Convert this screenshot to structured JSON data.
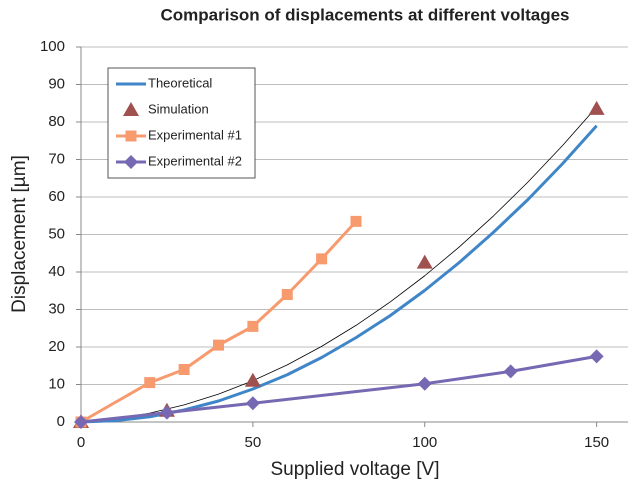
{
  "chart_data": {
    "type": "line",
    "title": "Comparison of displacements at different voltages",
    "x_label": "Supplied voltage [V]",
    "y_label": "Displacement [µm]",
    "xlim": [
      0,
      160
    ],
    "xticks": [
      0,
      50,
      100,
      150
    ],
    "ylim": [
      0,
      100
    ],
    "yticks": [
      0,
      10,
      20,
      30,
      40,
      50,
      60,
      70,
      80,
      90,
      100
    ],
    "grid": true,
    "legend": "upper left",
    "series": [
      {
        "name": "Theoretical",
        "color": "#3f86c8",
        "line": true,
        "marker": "none",
        "x": [
          0,
          10,
          20,
          30,
          40,
          50,
          60,
          70,
          80,
          90,
          100,
          110,
          120,
          130,
          140,
          150
        ],
        "values": [
          0,
          0.35,
          1.4,
          3.2,
          5.6,
          8.8,
          12.6,
          17.2,
          22.5,
          28.4,
          35.1,
          42.5,
          50.6,
          59.3,
          68.8,
          79.0
        ]
      },
      {
        "name": "Simulation",
        "color": "#a0504f",
        "line": false,
        "marker": "triangle",
        "x": [
          0,
          25,
          50,
          100,
          150
        ],
        "values": [
          0,
          3,
          11,
          42.5,
          83.5
        ]
      },
      {
        "name": "Experimental #1",
        "color": "#f79a6e",
        "line": true,
        "marker": "square",
        "x": [
          0,
          20,
          30,
          40,
          50,
          60,
          70,
          80
        ],
        "values": [
          0,
          10.5,
          14,
          20.5,
          25.5,
          34,
          43.5,
          53.5
        ]
      },
      {
        "name": "Experimental #2",
        "color": "#7668b2",
        "line": true,
        "marker": "diamond",
        "x": [
          0,
          25,
          50,
          100,
          125,
          150
        ],
        "values": [
          0,
          2.5,
          5,
          10.2,
          13.5,
          17.5
        ]
      }
    ],
    "trendline": {
      "color": "#000000",
      "x": [
        0,
        10,
        20,
        30,
        40,
        50,
        60,
        70,
        80,
        90,
        100,
        110,
        120,
        130,
        140,
        150
      ],
      "values": [
        0,
        0.84,
        2.36,
        4.56,
        7.44,
        11,
        15.24,
        20.16,
        25.76,
        32.04,
        39,
        46.64,
        54.96,
        63.96,
        73.64,
        84
      ]
    }
  }
}
